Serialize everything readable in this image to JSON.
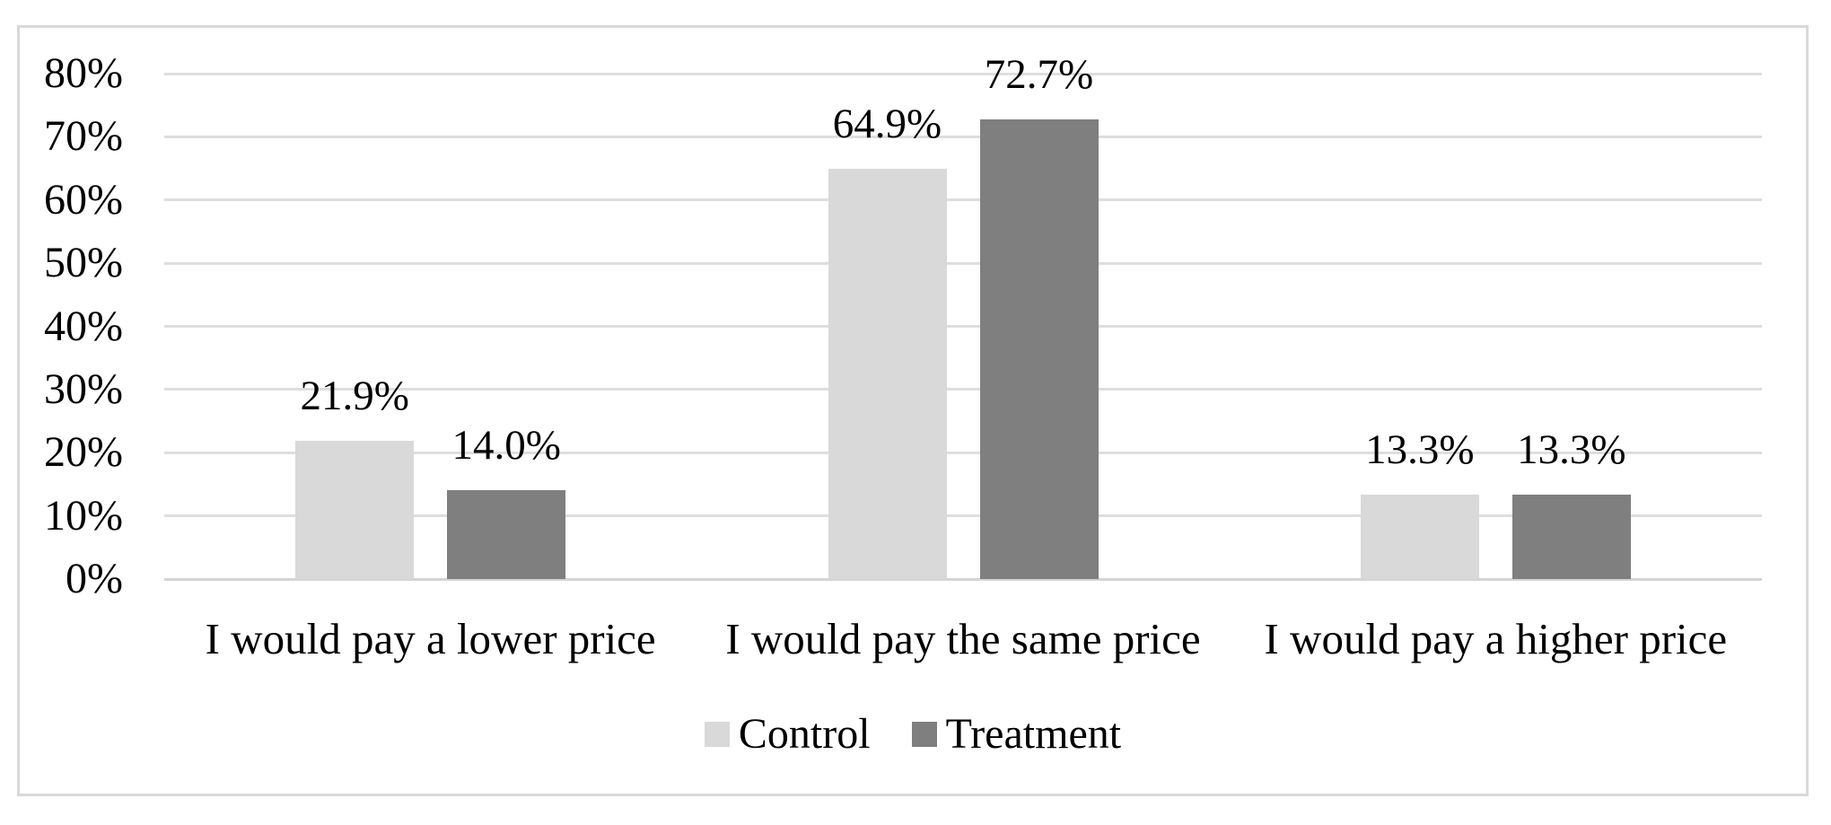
{
  "chart_data": {
    "type": "bar",
    "title": "",
    "xlabel": "",
    "ylabel": "",
    "categories": [
      "I would pay a lower price",
      "I would pay the same price",
      "I would pay a higher price"
    ],
    "series": [
      {
        "name": "Control",
        "color": "#d9d9d9",
        "values": [
          21.9,
          64.9,
          13.3
        ],
        "labels": [
          "21.9%",
          "64.9%",
          "13.3%"
        ]
      },
      {
        "name": "Treatment",
        "color": "#7f7f7f",
        "values": [
          14.0,
          72.7,
          13.3
        ],
        "labels": [
          "14.0%",
          "72.7%",
          "13.3%"
        ]
      }
    ],
    "y_axis": {
      "min": 0,
      "max": 80,
      "step": 10,
      "tick_labels": [
        "0%",
        "10%",
        "20%",
        "30%",
        "40%",
        "50%",
        "60%",
        "70%",
        "80%"
      ]
    },
    "ylim": [
      0,
      80
    ],
    "grid": true,
    "legend": {
      "position": "bottom",
      "entries": [
        "Control",
        "Treatment"
      ]
    }
  },
  "colors": {
    "control": "#d9d9d9",
    "treatment": "#7f7f7f",
    "gridline": "#dedede",
    "axis_line": "#d4d4d4",
    "frame_border": "#d9d9d9",
    "text": "#000000",
    "background": "#ffffff"
  }
}
